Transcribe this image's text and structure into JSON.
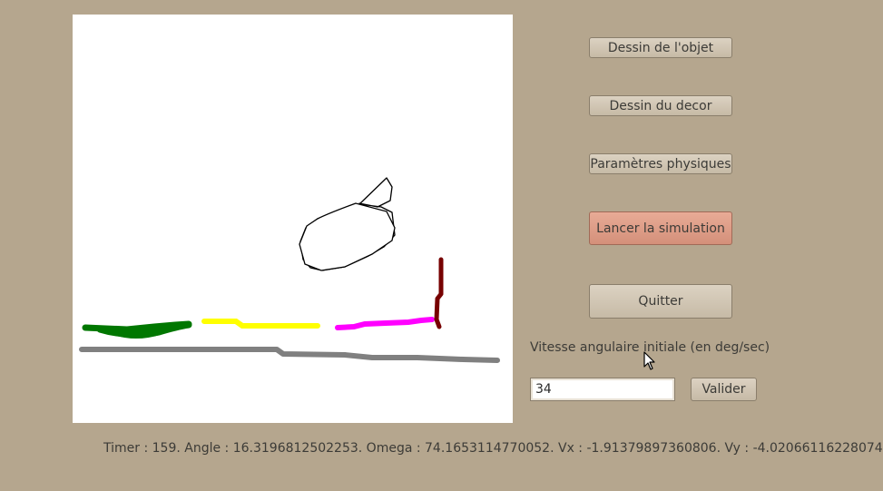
{
  "buttons": {
    "draw_object": "Dessin de l'objet",
    "draw_scenery": "Dessin du decor",
    "physics_params": "Paramètres physiques",
    "launch_simulation": "Lancer la simulation",
    "quit": "Quitter",
    "validate": "Valider"
  },
  "angular_speed": {
    "label": "Vitesse angulaire initiale (en deg/sec)",
    "value": "34"
  },
  "status_line": "Timer : 159. Angle : 16.3196812502253. Omega : 74.1653114770052. Vx : -1.91379897360806. Vy : -4.02066116228074",
  "colors": {
    "background": "#b5a68e",
    "canvas": "#ffffff",
    "launch_button": "#d99c86",
    "stroke_green": "#007700",
    "stroke_yellow": "#ffff00",
    "stroke_magenta": "#ff00ff",
    "stroke_darkred": "#770000",
    "stroke_gray": "#808080",
    "object_outline": "#000000"
  },
  "cursor_icon": "arrow-cursor-icon"
}
